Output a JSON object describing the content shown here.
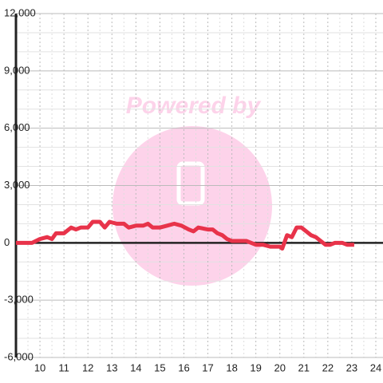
{
  "chart_data": {
    "type": "line",
    "watermark": "Powered by",
    "x": [
      9,
      9.5,
      9.67,
      10,
      10.3,
      10.5,
      10.67,
      11,
      11.3,
      11.5,
      11.7,
      12,
      12.2,
      12.5,
      12.7,
      12.9,
      13.2,
      13.5,
      13.7,
      14,
      14.3,
      14.5,
      14.7,
      15,
      15.3,
      15.6,
      15.9,
      16.2,
      16.4,
      16.6,
      17,
      17.2,
      17.4,
      17.6,
      17.8,
      18,
      18.3,
      18.6,
      18.8,
      19,
      19.3,
      19.6,
      20,
      20.1,
      20.3,
      20.5,
      20.7,
      20.9,
      21.1,
      21.3,
      21.5,
      21.7,
      21.9,
      22.1,
      22.3,
      22.6,
      22.8,
      23.1
    ],
    "series": [
      {
        "color": "#e8334a",
        "values": [
          0,
          0,
          0,
          200,
          300,
          200,
          500,
          500,
          800,
          700,
          800,
          800,
          1100,
          1100,
          800,
          1100,
          1000,
          1000,
          800,
          900,
          900,
          1000,
          800,
          800,
          900,
          1000,
          900,
          700,
          600,
          800,
          700,
          700,
          500,
          400,
          200,
          100,
          100,
          100,
          0,
          -100,
          -100,
          -200,
          -200,
          -300,
          400,
          300,
          800,
          800,
          600,
          400,
          300,
          100,
          -100,
          -100,
          0,
          0,
          -100,
          -100
        ]
      }
    ],
    "xlim": [
      9,
      24.3
    ],
    "xticks": [
      10,
      11,
      12,
      13,
      14,
      15,
      16,
      17,
      18,
      19,
      20,
      21,
      22,
      23,
      24
    ],
    "xminorticks": [
      9.5,
      10.5,
      11.5,
      12.5,
      13.5,
      14.5,
      15.5,
      16.5,
      17.5,
      18.5,
      19.5,
      20.5,
      21.5,
      22.5,
      23.5
    ],
    "ylim": [
      -6000,
      12000
    ],
    "yticks": [
      {
        "value": -6000,
        "label": "-6,000"
      },
      {
        "value": -3000,
        "label": "-3,000"
      },
      0,
      {
        "value": 3000,
        "label": "3,000"
      },
      {
        "value": 6000,
        "label": "6,000"
      },
      {
        "value": 9000,
        "label": "9,000"
      },
      {
        "value": 12000,
        "label": "12,000"
      }
    ],
    "yminorticks": [
      -5000,
      -4000,
      -2000,
      -1000,
      1000,
      2000,
      4000,
      5000,
      7000,
      8000,
      10000,
      11000
    ],
    "grid": true
  }
}
